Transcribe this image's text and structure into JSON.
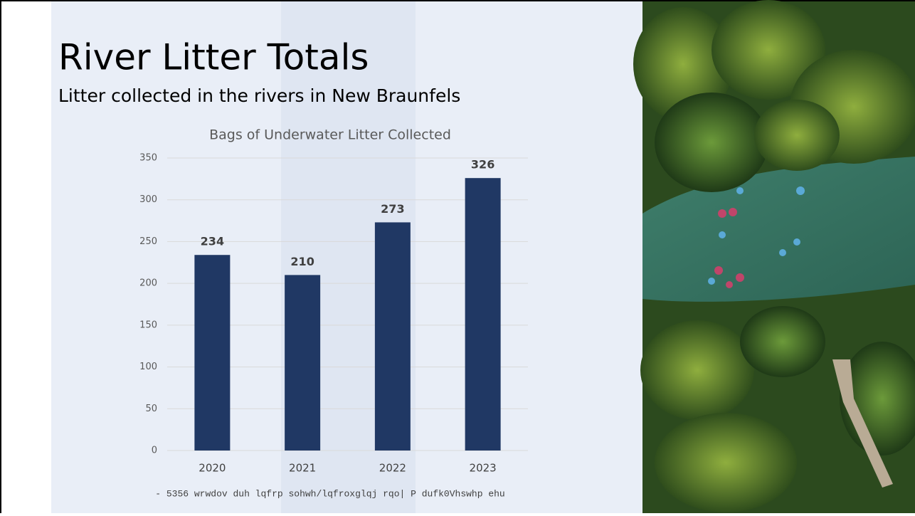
{
  "slide": {
    "title": "River Litter Totals",
    "subtitle": "Litter collected in the rivers in New Braunfels",
    "footnote": "- 5356 wrwdov duh lqfrp sohwh/lqfroxglqj rqo| P dufk0Vhswhp ehu"
  },
  "chart_data": {
    "type": "bar",
    "title": "Bags of Underwater Litter Collected",
    "categories": [
      "2020",
      "2021",
      "2022",
      "2023"
    ],
    "values": [
      234,
      210,
      273,
      326
    ],
    "color": "#203864",
    "ylim": [
      0,
      350
    ],
    "yticks": [
      0,
      50,
      100,
      150,
      200,
      250,
      300,
      350
    ],
    "grid": true
  }
}
